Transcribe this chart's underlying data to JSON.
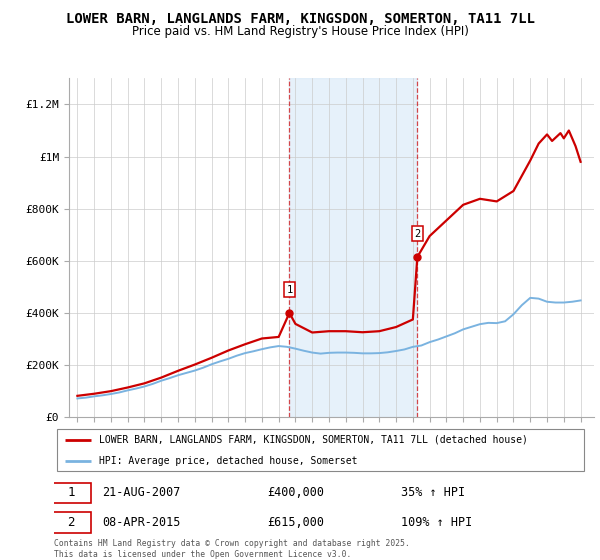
{
  "title": "LOWER BARN, LANGLANDS FARM, KINGSDON, SOMERTON, TA11 7LL",
  "subtitle": "Price paid vs. HM Land Registry's House Price Index (HPI)",
  "title_fontsize": 10,
  "subtitle_fontsize": 8.5,
  "ylabel_ticks": [
    "£0",
    "£200K",
    "£400K",
    "£600K",
    "£800K",
    "£1M",
    "£1.2M"
  ],
  "ytick_values": [
    0,
    200000,
    400000,
    600000,
    800000,
    1000000,
    1200000
  ],
  "ylim": [
    0,
    1300000
  ],
  "xlim_start": 1994.5,
  "xlim_end": 2025.8,
  "xticks": [
    1995,
    1996,
    1997,
    1998,
    1999,
    2000,
    2001,
    2002,
    2003,
    2004,
    2005,
    2006,
    2007,
    2008,
    2009,
    2010,
    2011,
    2012,
    2013,
    2014,
    2015,
    2016,
    2017,
    2018,
    2019,
    2020,
    2021,
    2022,
    2023,
    2024,
    2025
  ],
  "purchase1_date": 2007.64,
  "purchase1_price": 400000,
  "purchase1_label": "1",
  "purchase1_hpi_pct": "35% ↑ HPI",
  "purchase1_date_str": "21-AUG-2007",
  "purchase1_price_str": "£400,000",
  "purchase2_date": 2015.27,
  "purchase2_price": 615000,
  "purchase2_label": "2",
  "purchase2_hpi_pct": "109% ↑ HPI",
  "purchase2_date_str": "08-APR-2015",
  "purchase2_price_str": "£615,000",
  "hpi_line_color": "#7ab3e0",
  "price_line_color": "#cc0000",
  "vline_color": "#cc0000",
  "shade_color": "#d6e8f7",
  "shade_alpha": 0.6,
  "grid_color": "#cccccc",
  "background_color": "#ffffff",
  "legend_label_price": "LOWER BARN, LANGLANDS FARM, KINGSDON, SOMERTON, TA11 7LL (detached house)",
  "legend_label_hpi": "HPI: Average price, detached house, Somerset",
  "footnote": "Contains HM Land Registry data © Crown copyright and database right 2025.\nThis data is licensed under the Open Government Licence v3.0.",
  "marker_box_color": "#cc0000",
  "hpi_years": [
    1995,
    1995.5,
    1996,
    1996.5,
    1997,
    1997.5,
    1998,
    1998.5,
    1999,
    1999.5,
    2000,
    2000.5,
    2001,
    2001.5,
    2002,
    2002.5,
    2003,
    2003.5,
    2004,
    2004.5,
    2005,
    2005.5,
    2006,
    2006.5,
    2007,
    2007.5,
    2008,
    2008.5,
    2009,
    2009.5,
    2010,
    2010.5,
    2011,
    2011.5,
    2012,
    2012.5,
    2013,
    2013.5,
    2014,
    2014.5,
    2015,
    2015.5,
    2016,
    2016.5,
    2017,
    2017.5,
    2018,
    2018.5,
    2019,
    2019.5,
    2020,
    2020.5,
    2021,
    2021.5,
    2022,
    2022.5,
    2023,
    2023.5,
    2024,
    2024.5,
    2025
  ],
  "hpi_values": [
    72000,
    75000,
    80000,
    84000,
    89000,
    95000,
    103000,
    110000,
    118000,
    128000,
    140000,
    150000,
    161000,
    170000,
    179000,
    190000,
    203000,
    214000,
    224000,
    236000,
    246000,
    253000,
    261000,
    268000,
    273000,
    270000,
    263000,
    255000,
    248000,
    244000,
    247000,
    248000,
    248000,
    247000,
    245000,
    245000,
    246000,
    249000,
    254000,
    260000,
    270000,
    275000,
    288000,
    298000,
    310000,
    322000,
    337000,
    347000,
    357000,
    362000,
    361000,
    368000,
    395000,
    430000,
    458000,
    455000,
    443000,
    440000,
    440000,
    443000,
    448000
  ],
  "price_years": [
    1995,
    1996,
    1997,
    1998,
    1999,
    2000,
    2001,
    2002,
    2003,
    2004,
    2005,
    2006,
    2007,
    2007.64,
    2008,
    2009,
    2010,
    2011,
    2012,
    2013,
    2014,
    2015,
    2015.27,
    2016,
    2017,
    2018,
    2019,
    2020,
    2021,
    2022,
    2022.5,
    2023,
    2023.3,
    2023.8,
    2024,
    2024.3,
    2024.7,
    2025
  ],
  "price_values": [
    82000,
    90000,
    100000,
    114000,
    130000,
    152000,
    178000,
    202000,
    228000,
    256000,
    280000,
    302000,
    308000,
    400000,
    358000,
    325000,
    330000,
    330000,
    326000,
    330000,
    346000,
    375000,
    615000,
    695000,
    755000,
    815000,
    838000,
    828000,
    868000,
    985000,
    1050000,
    1085000,
    1060000,
    1090000,
    1070000,
    1100000,
    1040000,
    980000
  ]
}
